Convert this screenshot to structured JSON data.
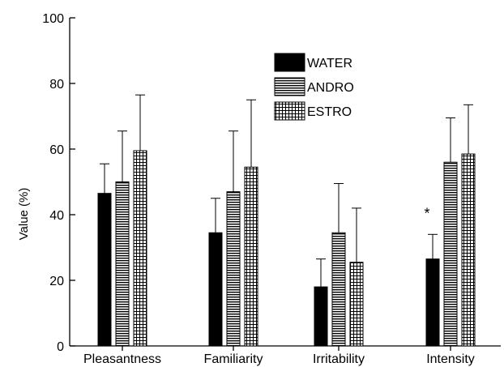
{
  "chart_data": {
    "type": "bar",
    "title": "",
    "xlabel": "",
    "ylabel": "Value (%)",
    "ylim": [
      0,
      100
    ],
    "yticks": [
      0,
      20,
      40,
      60,
      80,
      100
    ],
    "categories": [
      "Pleasantness",
      "Familiarity",
      "Irritability",
      "Intensity"
    ],
    "series": [
      {
        "name": "WATER",
        "values": [
          46.5,
          34.5,
          18.0,
          26.5
        ],
        "error": [
          9.0,
          10.5,
          8.5,
          7.5
        ],
        "pattern": "solid"
      },
      {
        "name": "ANDRO",
        "values": [
          50.0,
          47.0,
          34.5,
          56.0
        ],
        "error": [
          15.5,
          18.5,
          15.0,
          13.5
        ],
        "pattern": "horizontal-lines"
      },
      {
        "name": "ESTRO",
        "values": [
          59.5,
          54.5,
          25.5,
          58.5
        ],
        "error": [
          17.0,
          20.5,
          16.5,
          15.0
        ],
        "pattern": "grid"
      }
    ],
    "annotations": [
      {
        "text": "*",
        "category": "Intensity",
        "series": "WATER"
      }
    ],
    "legend_position": "top-center",
    "grid": false
  },
  "colors": {
    "bar": "#000000",
    "fill": "#ffffff"
  }
}
